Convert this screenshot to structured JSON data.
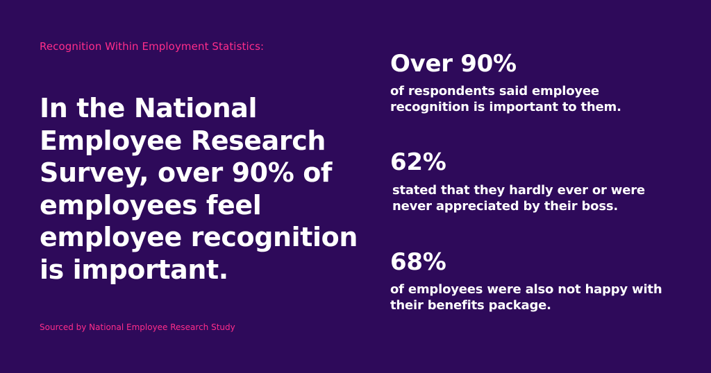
{
  "kicker": "Recognition Within Employment Statistics:",
  "headline": "In the National Employee Research Survey, over 90% of employees feel employee recognition is important.",
  "source": "Sourced by National Employee Research Study",
  "stats": [
    {
      "value": "Over 90%",
      "description": "of respondents said employee recognition is important to them."
    },
    {
      "value": "62%",
      "description": "stated that they hardly ever or were never appreciated by their boss."
    },
    {
      "value": "68%",
      "description": "of employees were also not happy with their benefits package."
    }
  ],
  "colors": {
    "background": "#2e0a5a",
    "accent": "#ff2d8a",
    "text": "#ffffff"
  }
}
